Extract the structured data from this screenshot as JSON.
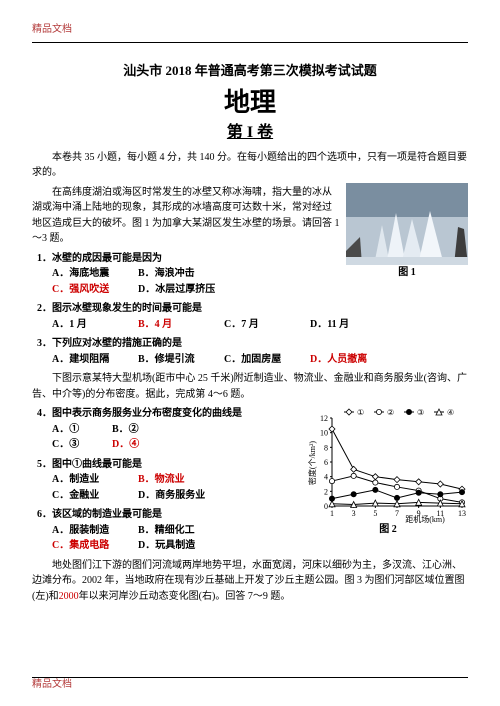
{
  "doc": {
    "tag": "精品文档",
    "title": "汕头市 2018 年普通高考第三次模拟考试试题",
    "subject": "地理",
    "volume": "第 I 卷"
  },
  "intro": {
    "p1": "本卷共 35 小题，每小题 4 分，共 140 分。在每小题给出的四个选项中，只有一项是符合题目要求的。",
    "p2": "在高纬度湖泊或海区时常发生的冰壁又称冰海啸，指大量的冰从湖或海中涌上陆地的现象，其形成的冰墙高度可达数十米，常对经过地区造成巨大的破坏。图 1 为加拿大某湖区发生冰壁的场景。请回答 1～3 题。"
  },
  "q1": {
    "stem": "1．冰壁的成因最可能是因为",
    "A": "A．海底地震",
    "B": "B．海浪冲击",
    "C": "C．强风吹送",
    "D": "D．冰层过厚挤压"
  },
  "q2": {
    "stem": "2．图示冰壁现象发生的时间最可能是",
    "A": "A．1 月",
    "B": "B．4 月",
    "C": "C．7 月",
    "D": "D．11 月"
  },
  "q3": {
    "stem": "3．下列应对冰壁的措施正确的是",
    "A": "A．建坝阻隔",
    "B": "B．修堤引流",
    "C": "C．加固房屋",
    "D": "D．人员撤离"
  },
  "intro2": "下图示意某特大型机场(距市中心 25 千米)附近制造业、物流业、金融业和商务服务业(咨询、广告、中介等)的分布密度。据此，完成第 4～6 题。",
  "q4": {
    "stem": "4．图中表示商务服务业分布密度变化的曲线是",
    "A": "A．①",
    "B": "B．②",
    "C": "C．③",
    "D": "D．④"
  },
  "q5": {
    "stem": "5．图中①曲线最可能是",
    "A": "A．制造业",
    "B": "B．物流业",
    "C": "C．金融业",
    "D": "D．商务服务业"
  },
  "q6": {
    "stem": "6．该区域的制造业最可能是",
    "A": "A．服装制造",
    "B": "B．精细化工",
    "C": "C．集成电路",
    "D": "D．玩具制造"
  },
  "intro3a": "地处图们江下游的图们河流域两岸地势平坦，水面宽阔，河床以细砂为主，多汊流、江心洲、边滩分布。2002 年，当地政府在现有沙丘基础上开发了沙丘主题公园。图 3 为图们河部区域位置图(左)和",
  "intro3b": "2000",
  "intro3c": "年以来河岸沙丘动态变化图(右)。回答 7～9 题。",
  "fig1": {
    "caption": "图 1"
  },
  "fig2": {
    "caption": "图 2",
    "type": "line",
    "xlabel": "距机场(km)",
    "ylabel": "密度(个/km²)",
    "xticks": [
      1,
      3,
      5,
      7,
      9,
      11,
      13
    ],
    "yticks": [
      0,
      2,
      4,
      6,
      8,
      10,
      12
    ],
    "xlim": [
      1,
      13
    ],
    "ylim": [
      0,
      12
    ],
    "legend": [
      "①",
      "②",
      "③",
      "④"
    ],
    "series_colors": [
      "#000",
      "#000",
      "#000",
      "#000"
    ],
    "markers": [
      "diamond",
      "circle",
      "circle",
      "triangle"
    ],
    "marker_fill": [
      "#fff",
      "#fff",
      "#000",
      "#fff"
    ],
    "line_widths": [
      1,
      1,
      1,
      1
    ],
    "s1": [
      [
        1,
        10.5
      ],
      [
        3,
        5
      ],
      [
        5,
        4
      ],
      [
        7,
        3.6
      ],
      [
        9,
        3.3
      ],
      [
        11,
        3
      ],
      [
        13,
        2.3
      ]
    ],
    "s2": [
      [
        1,
        3.4
      ],
      [
        3,
        4.1
      ],
      [
        5,
        3.2
      ],
      [
        7,
        2.6
      ],
      [
        9,
        2.1
      ],
      [
        11,
        1
      ],
      [
        13,
        0.5
      ]
    ],
    "s3": [
      [
        1,
        1
      ],
      [
        3,
        1.6
      ],
      [
        5,
        2.2
      ],
      [
        7,
        1.1
      ],
      [
        9,
        1.8
      ],
      [
        11,
        1.6
      ],
      [
        13,
        1.9
      ]
    ],
    "s4": [
      [
        1,
        0.3
      ],
      [
        3,
        0.2
      ],
      [
        5,
        0.4
      ],
      [
        7,
        0.3
      ],
      [
        9,
        0.5
      ],
      [
        11,
        0.4
      ],
      [
        13,
        0.3
      ]
    ],
    "axis_color": "#000",
    "bg": "#fff",
    "font_size": 8
  }
}
